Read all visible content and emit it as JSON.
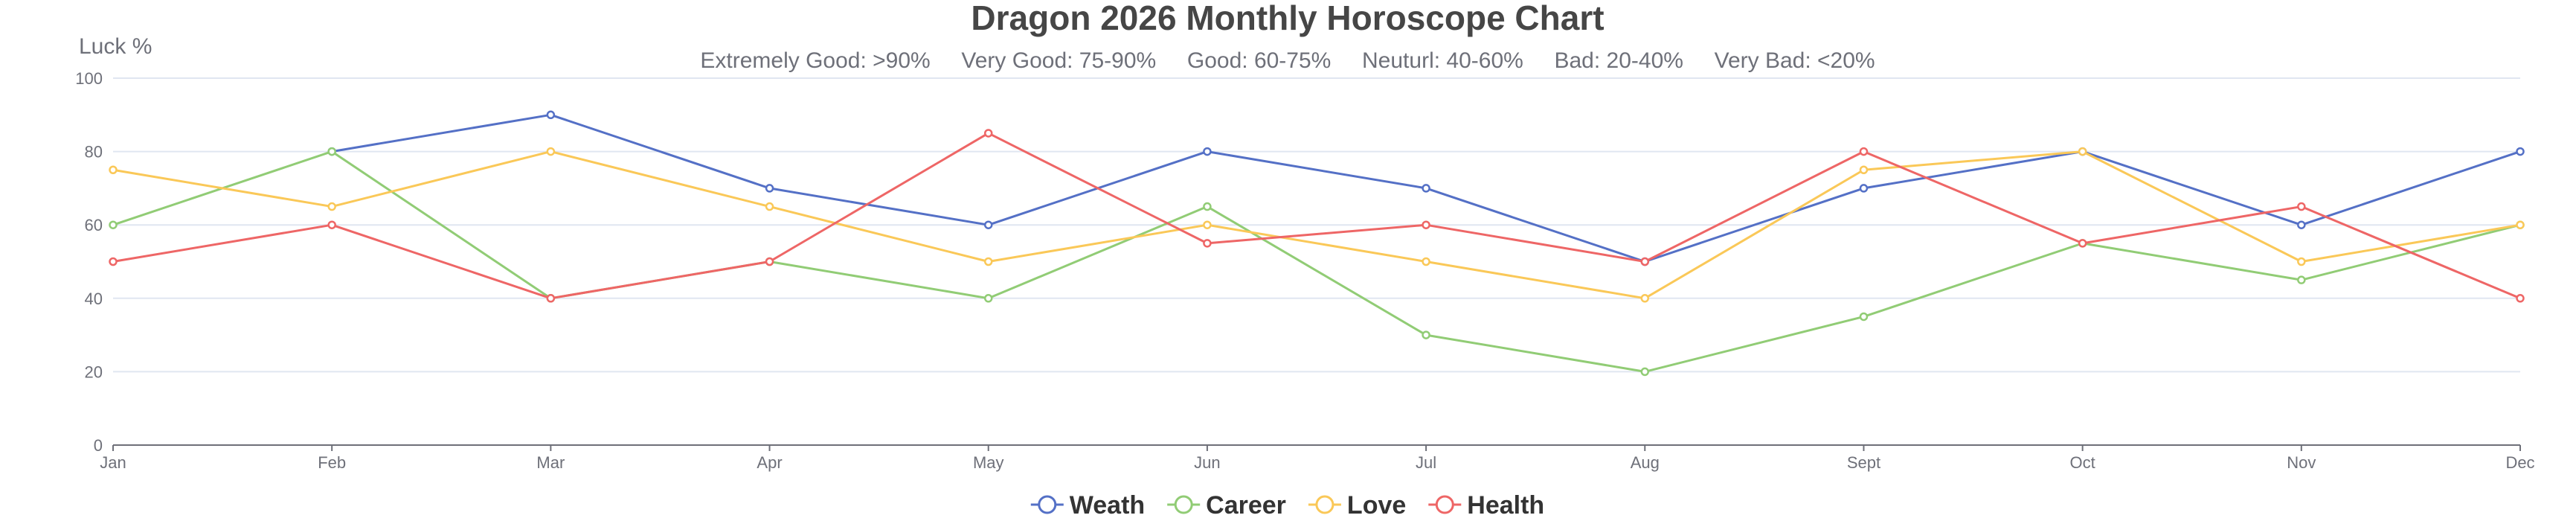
{
  "chart_data": {
    "type": "line",
    "title": "Dragon 2026 Monthly Horoscope Chart",
    "subtitle": "Extremely Good: >90%     Very Good: 75-90%     Good: 60-75%     Neuturl: 40-60%     Bad: 20-40%     Very Bad: <20%",
    "ylabel": "Luck %",
    "xlabel": "",
    "categories": [
      "Jan",
      "Feb",
      "Mar",
      "Apr",
      "May",
      "Jun",
      "Jul",
      "Aug",
      "Sept",
      "Oct",
      "Nov",
      "Dec"
    ],
    "ylim": [
      0,
      100
    ],
    "yticks": [
      0,
      20,
      40,
      60,
      80,
      100
    ],
    "grid": true,
    "legend_position": "bottom",
    "series": [
      {
        "name": "Weath",
        "color": "#5470c6",
        "values": [
          null,
          80,
          90,
          70,
          60,
          80,
          70,
          50,
          70,
          80,
          60,
          80
        ]
      },
      {
        "name": "Career",
        "color": "#91cc75",
        "values": [
          60,
          80,
          40,
          50,
          40,
          65,
          30,
          20,
          35,
          55,
          45,
          60
        ]
      },
      {
        "name": "Love",
        "color": "#fac858",
        "values": [
          75,
          65,
          80,
          65,
          50,
          60,
          50,
          40,
          75,
          80,
          50,
          60
        ]
      },
      {
        "name": "Health",
        "color": "#ee6666",
        "values": [
          50,
          60,
          40,
          50,
          85,
          55,
          60,
          50,
          80,
          55,
          65,
          40
        ]
      }
    ]
  }
}
